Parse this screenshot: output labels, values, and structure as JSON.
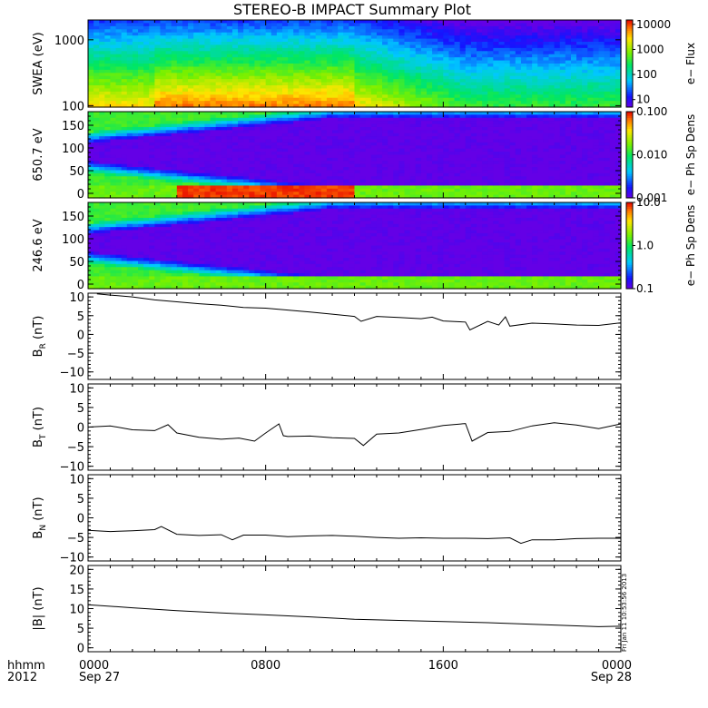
{
  "title": "STEREO-B IMPACT Summary Plot",
  "stamp": "Fri Jan 11 10:53:56 2013",
  "time_axis": {
    "row1_label": "hhmm",
    "row2_label": "2012",
    "ticks": [
      {
        "t": 0,
        "label": "0000",
        "sub": "Sep 27"
      },
      {
        "t": 8,
        "label": "0800",
        "sub": ""
      },
      {
        "t": 16,
        "label": "1600",
        "sub": ""
      },
      {
        "t": 24,
        "label": "0000",
        "sub": "Sep 28"
      }
    ],
    "range": [
      0,
      24
    ]
  },
  "chart_data": [
    {
      "type": "heatmap",
      "ylabel": "SWEA (eV)",
      "ylog": true,
      "ylim": [
        95,
        2000
      ],
      "yticks": [
        {
          "v": 100,
          "label": "100"
        },
        {
          "v": 1000,
          "label": "1000"
        }
      ],
      "colorbar": {
        "label": "e− Flux",
        "log": true,
        "range": [
          5,
          15000
        ],
        "ticks": [
          {
            "v": 10,
            "label": "10"
          },
          {
            "v": 100,
            "label": "100"
          },
          {
            "v": 1000,
            "label": "1000"
          },
          {
            "v": 10000,
            "label": "10000"
          }
        ]
      },
      "description_values": {
        "low_energy_peak_flux": 8000,
        "high_energy_flux": 10
      }
    },
    {
      "type": "heatmap",
      "ylabel": "650.7 eV",
      "ylim": [
        -10,
        180
      ],
      "yticks": [
        {
          "v": 0,
          "label": "0"
        },
        {
          "v": 50,
          "label": "50"
        },
        {
          "v": 100,
          "label": "100"
        },
        {
          "v": 150,
          "label": "150"
        }
      ],
      "colorbar": {
        "label": "e− Ph Sp Dens",
        "log": true,
        "range": [
          0.001,
          0.1
        ],
        "ticks": [
          {
            "v": 0.001,
            "label": "0.001"
          },
          {
            "v": 0.01,
            "label": "0.010"
          },
          {
            "v": 0.1,
            "label": "0.100"
          }
        ]
      }
    },
    {
      "type": "heatmap",
      "ylabel": "246.6 eV",
      "ylim": [
        -10,
        180
      ],
      "yticks": [
        {
          "v": 0,
          "label": "0"
        },
        {
          "v": 50,
          "label": "50"
        },
        {
          "v": 100,
          "label": "100"
        },
        {
          "v": 150,
          "label": "150"
        }
      ],
      "colorbar": {
        "label": "e− Ph Sp Dens",
        "log": true,
        "range": [
          0.1,
          10
        ],
        "ticks": [
          {
            "v": 0.1,
            "label": "0.1"
          },
          {
            "v": 1,
            "label": "1.0"
          },
          {
            "v": 10,
            "label": "10.0"
          }
        ]
      }
    },
    {
      "type": "line",
      "ylabel": "B",
      "ysub": "R",
      "yunit": " (nT)",
      "ylim": [
        -12,
        11
      ],
      "yticks": [
        {
          "v": -10,
          "label": "−10"
        },
        {
          "v": -5,
          "label": "−5"
        },
        {
          "v": 0,
          "label": "0"
        },
        {
          "v": 5,
          "label": "5"
        },
        {
          "v": 10,
          "label": "10"
        }
      ],
      "x": [
        0.4,
        1,
        2,
        3,
        4,
        5,
        6,
        7,
        8,
        9,
        10,
        11,
        12,
        12.3,
        13,
        14,
        15,
        15.5,
        16,
        17,
        17.2,
        18,
        18.5,
        18.8,
        19,
        20,
        21,
        22,
        23,
        24
      ],
      "values": [
        10.8,
        10.5,
        10,
        9.2,
        8.7,
        8.2,
        7.8,
        7.2,
        7,
        6.5,
        6,
        5.4,
        4.8,
        3.5,
        4.8,
        4.5,
        4.2,
        4.6,
        3.6,
        3.3,
        1.2,
        3.5,
        2.5,
        4.7,
        2.2,
        3,
        2.8,
        2.5,
        2.4,
        3.1
      ]
    },
    {
      "type": "line",
      "ylabel": "B",
      "ysub": "T",
      "yunit": " (nT)",
      "ylim": [
        -11,
        11
      ],
      "yticks": [
        {
          "v": -10,
          "label": "−10"
        },
        {
          "v": -5,
          "label": "−5"
        },
        {
          "v": 0,
          "label": "0"
        },
        {
          "v": 5,
          "label": "5"
        },
        {
          "v": 10,
          "label": "10"
        }
      ],
      "x": [
        0,
        1,
        2,
        3,
        3.6,
        4,
        5,
        6,
        6.8,
        7.5,
        8,
        8.6,
        8.8,
        9,
        10,
        11,
        12,
        12.4,
        13,
        14,
        15,
        16,
        17,
        17.3,
        18,
        19,
        20,
        21,
        22,
        23,
        24
      ],
      "values": [
        0,
        0.3,
        -0.7,
        -0.9,
        0.6,
        -1.5,
        -2.6,
        -3.1,
        -2.8,
        -3.6,
        -1.5,
        0.8,
        -2.2,
        -2.4,
        -2.3,
        -2.7,
        -2.9,
        -4.7,
        -1.8,
        -1.5,
        -0.6,
        0.4,
        0.9,
        -3.6,
        -1.4,
        -1.1,
        0.3,
        1.1,
        0.5,
        -0.4,
        0.8
      ]
    },
    {
      "type": "line",
      "ylabel": "B",
      "ysub": "N",
      "yunit": " (nT)",
      "ylim": [
        -11,
        11
      ],
      "yticks": [
        {
          "v": -10,
          "label": "−10"
        },
        {
          "v": -5,
          "label": "−5"
        },
        {
          "v": 0,
          "label": "0"
        },
        {
          "v": 5,
          "label": "5"
        },
        {
          "v": 10,
          "label": "10"
        }
      ],
      "x": [
        0,
        1,
        2,
        3,
        3.3,
        4,
        5,
        6,
        6.5,
        7,
        8,
        9,
        10,
        11,
        12,
        13,
        14,
        15,
        16,
        17,
        18,
        19,
        19.5,
        20,
        21,
        22,
        23,
        24
      ],
      "values": [
        -3.2,
        -3.5,
        -3.3,
        -3,
        -2.2,
        -4.2,
        -4.5,
        -4.3,
        -5.6,
        -4.4,
        -4.4,
        -4.8,
        -4.6,
        -4.5,
        -4.7,
        -5,
        -5.2,
        -5.1,
        -5.2,
        -5.2,
        -5.3,
        -5.1,
        -6.5,
        -5.6,
        -5.6,
        -5.3,
        -5.2,
        -5.2
      ]
    },
    {
      "type": "line",
      "ylabel": "|B| (nT)",
      "ylim": [
        -1,
        21
      ],
      "yticks": [
        {
          "v": 0,
          "label": "0"
        },
        {
          "v": 5,
          "label": "5"
        },
        {
          "v": 10,
          "label": "10"
        },
        {
          "v": 15,
          "label": "15"
        },
        {
          "v": 20,
          "label": "20"
        }
      ],
      "x": [
        0,
        2,
        4,
        6,
        8,
        10,
        12,
        14,
        16,
        18,
        20,
        22,
        23,
        24
      ],
      "values": [
        11,
        10.2,
        9.5,
        8.9,
        8.4,
        7.9,
        7.3,
        7,
        6.7,
        6.4,
        6,
        5.6,
        5.4,
        5.5
      ]
    }
  ],
  "colors": {
    "line": "#000000",
    "bg": "#ffffff"
  }
}
